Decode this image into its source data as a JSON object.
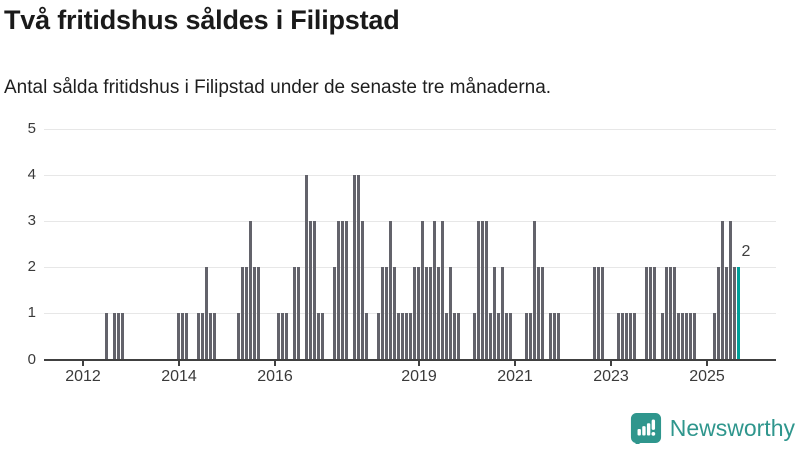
{
  "chart_data": {
    "type": "bar",
    "title": "Två fritidshus såldes i Filipstad",
    "subtitle": "Antal sålda fritidshus i Filipstad under de senaste tre månaderna.",
    "xlabel": "",
    "ylabel": "",
    "ylim": [
      0,
      5
    ],
    "yticks": [
      0,
      1,
      2,
      3,
      4,
      5
    ],
    "xticks": [
      2012,
      2014,
      2016,
      2019,
      2021,
      2023,
      2025
    ],
    "grid": true,
    "bar_color": "#63636b",
    "highlight_color": "#00a09a",
    "annotation_label": "2",
    "highlight_month": "2025-09",
    "values_by_month": [
      [
        "2012-07",
        1
      ],
      [
        "2012-09",
        1
      ],
      [
        "2012-10",
        1
      ],
      [
        "2012-11",
        1
      ],
      [
        "2014-01",
        1
      ],
      [
        "2014-02",
        1
      ],
      [
        "2014-03",
        1
      ],
      [
        "2014-06",
        1
      ],
      [
        "2014-07",
        1
      ],
      [
        "2014-08",
        2
      ],
      [
        "2014-09",
        1
      ],
      [
        "2014-10",
        1
      ],
      [
        "2015-04",
        1
      ],
      [
        "2015-05",
        2
      ],
      [
        "2015-06",
        2
      ],
      [
        "2015-07",
        3
      ],
      [
        "2015-08",
        2
      ],
      [
        "2015-09",
        2
      ],
      [
        "2016-02",
        1
      ],
      [
        "2016-03",
        1
      ],
      [
        "2016-04",
        1
      ],
      [
        "2016-06",
        2
      ],
      [
        "2016-07",
        2
      ],
      [
        "2016-09",
        4
      ],
      [
        "2016-10",
        3
      ],
      [
        "2016-11",
        3
      ],
      [
        "2016-12",
        1
      ],
      [
        "2017-01",
        1
      ],
      [
        "2017-04",
        2
      ],
      [
        "2017-05",
        3
      ],
      [
        "2017-06",
        3
      ],
      [
        "2017-07",
        3
      ],
      [
        "2017-09",
        4
      ],
      [
        "2017-10",
        4
      ],
      [
        "2017-11",
        3
      ],
      [
        "2017-12",
        1
      ],
      [
        "2018-03",
        1
      ],
      [
        "2018-04",
        2
      ],
      [
        "2018-05",
        2
      ],
      [
        "2018-06",
        3
      ],
      [
        "2018-07",
        2
      ],
      [
        "2018-08",
        1
      ],
      [
        "2018-09",
        1
      ],
      [
        "2018-10",
        1
      ],
      [
        "2018-11",
        1
      ],
      [
        "2018-12",
        2
      ],
      [
        "2019-01",
        2
      ],
      [
        "2019-02",
        3
      ],
      [
        "2019-03",
        2
      ],
      [
        "2019-04",
        2
      ],
      [
        "2019-05",
        3
      ],
      [
        "2019-06",
        2
      ],
      [
        "2019-07",
        3
      ],
      [
        "2019-08",
        1
      ],
      [
        "2019-09",
        2
      ],
      [
        "2019-10",
        1
      ],
      [
        "2019-11",
        1
      ],
      [
        "2020-03",
        1
      ],
      [
        "2020-04",
        3
      ],
      [
        "2020-05",
        3
      ],
      [
        "2020-06",
        3
      ],
      [
        "2020-07",
        1
      ],
      [
        "2020-08",
        2
      ],
      [
        "2020-09",
        1
      ],
      [
        "2020-10",
        2
      ],
      [
        "2020-11",
        1
      ],
      [
        "2020-12",
        1
      ],
      [
        "2021-04",
        1
      ],
      [
        "2021-05",
        1
      ],
      [
        "2021-06",
        3
      ],
      [
        "2021-07",
        2
      ],
      [
        "2021-08",
        2
      ],
      [
        "2021-10",
        1
      ],
      [
        "2021-11",
        1
      ],
      [
        "2021-12",
        1
      ],
      [
        "2022-09",
        2
      ],
      [
        "2022-10",
        2
      ],
      [
        "2022-11",
        2
      ],
      [
        "2023-03",
        1
      ],
      [
        "2023-04",
        1
      ],
      [
        "2023-05",
        1
      ],
      [
        "2023-06",
        1
      ],
      [
        "2023-07",
        1
      ],
      [
        "2023-10",
        2
      ],
      [
        "2023-11",
        2
      ],
      [
        "2023-12",
        2
      ],
      [
        "2024-02",
        1
      ],
      [
        "2024-03",
        2
      ],
      [
        "2024-04",
        2
      ],
      [
        "2024-05",
        2
      ],
      [
        "2024-06",
        1
      ],
      [
        "2024-07",
        1
      ],
      [
        "2024-08",
        1
      ],
      [
        "2024-09",
        1
      ],
      [
        "2024-10",
        1
      ],
      [
        "2025-03",
        1
      ],
      [
        "2025-04",
        2
      ],
      [
        "2025-05",
        3
      ],
      [
        "2025-06",
        2
      ],
      [
        "2025-07",
        3
      ],
      [
        "2025-08",
        2
      ],
      [
        "2025-09",
        2
      ]
    ]
  },
  "footer": {
    "brand": "Newsworthy",
    "brand_color": "#2f968d",
    "logo_icon": "bar-chart-speech-bubble-icon"
  }
}
